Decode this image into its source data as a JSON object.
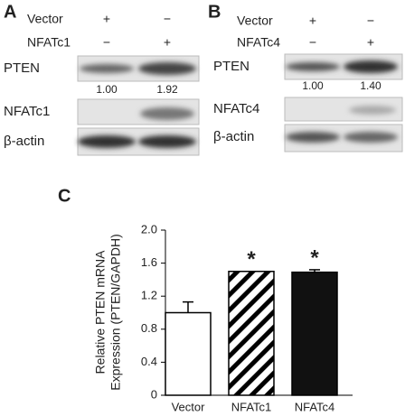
{
  "panel_a": {
    "label": "A",
    "rows": [
      {
        "name": "Vector",
        "marks": [
          "+",
          "−"
        ]
      },
      {
        "name": "NFATc1",
        "marks": [
          "−",
          "+"
        ]
      }
    ],
    "blots": [
      "PTEN",
      "NFATc1",
      "β-actin"
    ],
    "quant": [
      "1.00",
      "1.92"
    ]
  },
  "panel_b": {
    "label": "B",
    "rows": [
      {
        "name": "Vector",
        "marks": [
          "+",
          "−"
        ]
      },
      {
        "name": "NFATc4",
        "marks": [
          "−",
          "+"
        ]
      }
    ],
    "blots": [
      "PTEN",
      "NFATc4",
      "β-actin"
    ],
    "quant": [
      "1.00",
      "1.40"
    ]
  },
  "chart_data": {
    "type": "bar",
    "label": "C",
    "y_label": [
      "Relative PTEN mRNA",
      "Expression (PTEN/GAPDH)"
    ],
    "categories": [
      "Vector",
      "NFATc1",
      "NFATc4"
    ],
    "values": [
      1.0,
      1.5,
      1.49
    ],
    "errors": [
      0.13,
      0.0,
      0.03
    ],
    "styles": [
      "open",
      "hatched",
      "solid"
    ],
    "significance": [
      null,
      "*",
      "*"
    ],
    "ylim": [
      0,
      2
    ],
    "yticks": [
      0,
      0.4,
      0.8,
      1.2,
      1.6,
      {
        "value": 2,
        "label": "2.0"
      }
    ]
  }
}
